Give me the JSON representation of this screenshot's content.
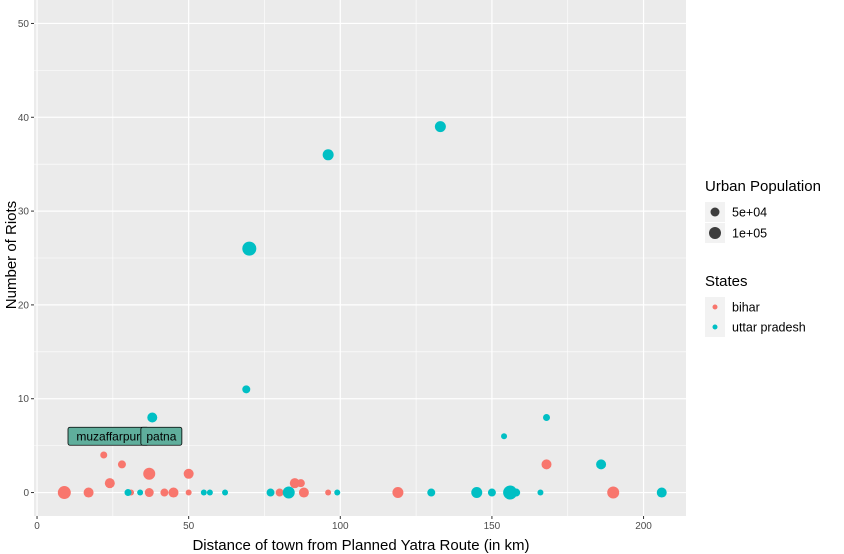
{
  "chart_data": {
    "type": "scatter",
    "title": "",
    "xlabel": "Distance of town from Planned Yatra Route (in km)",
    "ylabel": "Number of Riots",
    "xlim": [
      -1,
      214
    ],
    "ylim": [
      -2.5,
      52.5
    ],
    "xticks": [
      0,
      50,
      100,
      150,
      200
    ],
    "yticks": [
      0,
      10,
      20,
      30,
      40,
      50
    ],
    "grid": true,
    "legend_placement": "right",
    "colors": {
      "bihar": "#F8766D",
      "uttar pradesh": "#00BFC4",
      "panel": "#EBEBEB",
      "gridline": "#FFFFFF",
      "label_fill": "#5FAE9C"
    },
    "legends": {
      "size": {
        "title": "Urban Population",
        "entries": [
          "5e+04",
          "1e+05"
        ],
        "radii": [
          4.5,
          6
        ]
      },
      "color": {
        "title": "States",
        "entries": [
          "bihar",
          "uttar pradesh"
        ]
      }
    },
    "series": [
      {
        "name": "bihar",
        "points": [
          {
            "x": 9,
            "y": 0,
            "r": 6.5
          },
          {
            "x": 17,
            "y": 0,
            "r": 5
          },
          {
            "x": 22,
            "y": 4,
            "r": 3.5
          },
          {
            "x": 24,
            "y": 1,
            "r": 5
          },
          {
            "x": 28,
            "y": 3,
            "r": 4
          },
          {
            "x": 31,
            "y": 0,
            "r": 3
          },
          {
            "x": 37,
            "y": 2,
            "r": 6
          },
          {
            "x": 37,
            "y": 0,
            "r": 4.5
          },
          {
            "x": 42,
            "y": 0,
            "r": 4
          },
          {
            "x": 45,
            "y": 0,
            "r": 5
          },
          {
            "x": 50,
            "y": 2,
            "r": 5
          },
          {
            "x": 50,
            "y": 0,
            "r": 3
          },
          {
            "x": 80,
            "y": 0,
            "r": 4
          },
          {
            "x": 85,
            "y": 1,
            "r": 5
          },
          {
            "x": 87,
            "y": 1,
            "r": 4
          },
          {
            "x": 88,
            "y": 0,
            "r": 5
          },
          {
            "x": 96,
            "y": 0,
            "r": 3
          },
          {
            "x": 119,
            "y": 0,
            "r": 5.5
          },
          {
            "x": 168,
            "y": 3,
            "r": 5
          },
          {
            "x": 190,
            "y": 0,
            "r": 6
          }
        ]
      },
      {
        "name": "uttar pradesh",
        "points": [
          {
            "x": 30,
            "y": 0,
            "r": 3.5
          },
          {
            "x": 34,
            "y": 0,
            "r": 3
          },
          {
            "x": 38,
            "y": 8,
            "r": 5
          },
          {
            "x": 55,
            "y": 0,
            "r": 3
          },
          {
            "x": 57,
            "y": 0,
            "r": 3
          },
          {
            "x": 62,
            "y": 0,
            "r": 3
          },
          {
            "x": 69,
            "y": 11,
            "r": 4
          },
          {
            "x": 70,
            "y": 26,
            "r": 7
          },
          {
            "x": 77,
            "y": 0,
            "r": 4
          },
          {
            "x": 83,
            "y": 0,
            "r": 6
          },
          {
            "x": 96,
            "y": 36,
            "r": 5.5
          },
          {
            "x": 99,
            "y": 0,
            "r": 3
          },
          {
            "x": 130,
            "y": 0,
            "r": 4
          },
          {
            "x": 133,
            "y": 39,
            "r": 5.5
          },
          {
            "x": 145,
            "y": 0,
            "r": 5.5
          },
          {
            "x": 150,
            "y": 0,
            "r": 4
          },
          {
            "x": 154,
            "y": 6,
            "r": 3
          },
          {
            "x": 156,
            "y": 0,
            "r": 7
          },
          {
            "x": 158,
            "y": 0,
            "r": 4
          },
          {
            "x": 166,
            "y": 0,
            "r": 3
          },
          {
            "x": 168,
            "y": 8,
            "r": 3.5
          },
          {
            "x": 186,
            "y": 3,
            "r": 5
          },
          {
            "x": 206,
            "y": 0,
            "r": 5
          }
        ]
      }
    ],
    "annotations": [
      {
        "text": "muzaffarpur",
        "x": 23.5,
        "y": 6
      },
      {
        "text": "patna",
        "x": 41,
        "y": 6
      }
    ]
  }
}
